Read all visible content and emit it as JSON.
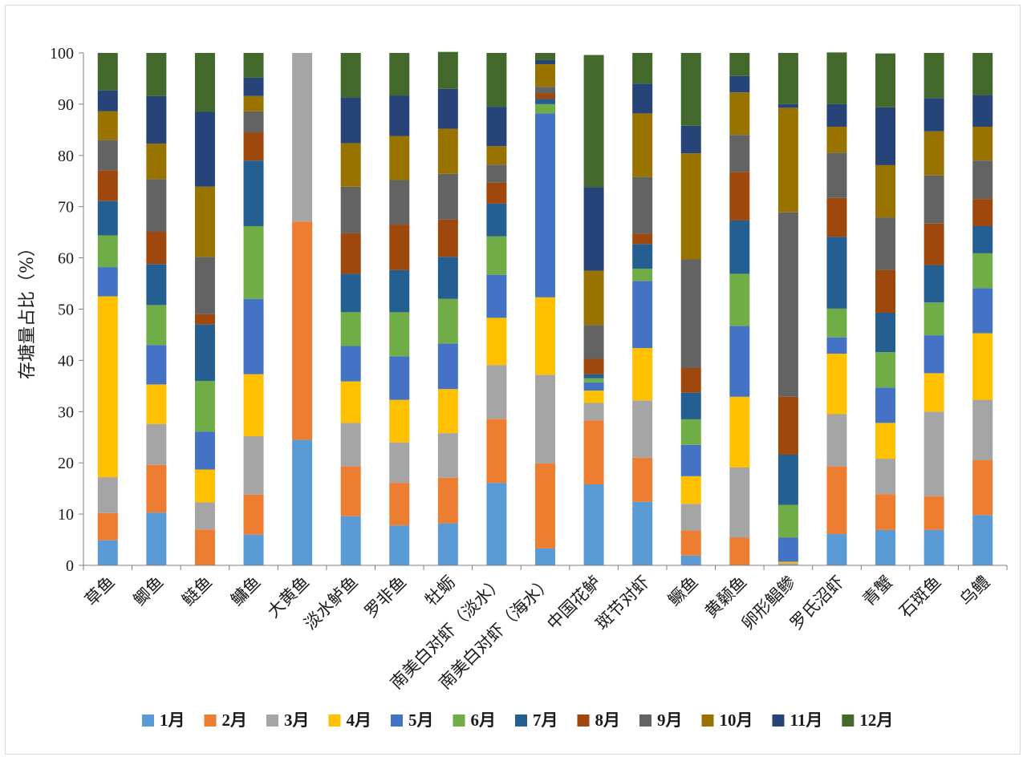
{
  "chart_data": {
    "type": "bar",
    "stacked": true,
    "title": "",
    "xlabel": "",
    "ylabel": "存塘量占比（%）",
    "ylim": [
      0,
      100
    ],
    "yticks": [
      0,
      10,
      20,
      30,
      40,
      50,
      60,
      70,
      80,
      90,
      100
    ],
    "grid": false,
    "legend_position": "bottom",
    "categories": [
      "草鱼",
      "鲫鱼",
      "鲢鱼",
      "鳙鱼",
      "大黄鱼",
      "淡水鲈鱼",
      "罗非鱼",
      "牡蛎",
      "南美白对虾（淡水）",
      "南美白对虾（海水）",
      "中国花鲈",
      "斑节对虾",
      "鳜鱼",
      "黄颡鱼",
      "卵形鲳鲹",
      "罗氏沼虾",
      "青蟹",
      "石斑鱼",
      "乌鳢"
    ],
    "series": [
      {
        "name": "1月",
        "color": "#5B9BD5",
        "values": [
          4.9,
          10.3,
          0,
          6,
          24.5,
          9.6,
          7.8,
          8.2,
          16.1,
          3.3,
          15.8,
          12.4,
          1.9,
          0,
          0,
          6.1,
          6.9,
          6.9,
          9.8
        ]
      },
      {
        "name": "2月",
        "color": "#ED7D31",
        "values": [
          5.3,
          9.3,
          7,
          7.8,
          42.6,
          9.7,
          8.3,
          8.9,
          12.5,
          16.6,
          12.5,
          8.6,
          4.9,
          5.4,
          0,
          13.2,
          7,
          6.6,
          10.7
        ]
      },
      {
        "name": "3月",
        "color": "#A5A5A5",
        "values": [
          7,
          8,
          5.3,
          11.4,
          32.9,
          8.5,
          7.9,
          8.7,
          10.5,
          17.3,
          3.4,
          11.2,
          5.2,
          13.7,
          0.4,
          10.2,
          6.9,
          16.5,
          11.8
        ]
      },
      {
        "name": "4月",
        "color": "#FFC000",
        "values": [
          35.3,
          7.7,
          6.4,
          12.1,
          0,
          8.1,
          8.3,
          8.6,
          9.2,
          15.1,
          2.4,
          10.2,
          5.4,
          13.8,
          0.3,
          11.8,
          7,
          7.5,
          13
        ]
      },
      {
        "name": "5月",
        "color": "#4472C4",
        "values": [
          5.7,
          7.7,
          7.4,
          14.7,
          0,
          6.9,
          8.5,
          8.9,
          8.4,
          35.9,
          1.6,
          13.1,
          6.1,
          13.8,
          4.7,
          3.2,
          6.9,
          7.4,
          8.8
        ]
      },
      {
        "name": "6月",
        "color": "#70AD47",
        "values": [
          6.2,
          7.8,
          9.9,
          14.2,
          0,
          6.6,
          8.6,
          8.7,
          7.5,
          1.8,
          0.8,
          2.4,
          5,
          10.2,
          6.4,
          5.6,
          6.9,
          6.4,
          6.8
        ]
      },
      {
        "name": "7月",
        "color": "#255E91",
        "values": [
          6.7,
          8,
          11,
          12.8,
          0,
          7.5,
          8.2,
          8.2,
          6.4,
          1,
          0.8,
          4.8,
          5.2,
          10.4,
          9.8,
          14,
          7.7,
          7.3,
          5.3
        ]
      },
      {
        "name": "8月",
        "color": "#9E480E",
        "values": [
          6,
          6.3,
          2,
          5.5,
          0,
          7.9,
          8.9,
          7.3,
          4.1,
          1.1,
          3,
          2,
          4.8,
          9.5,
          11.3,
          7.6,
          8.3,
          8.1,
          5.3
        ]
      },
      {
        "name": "9月",
        "color": "#636363",
        "values": [
          5.9,
          10.3,
          11.2,
          4.1,
          0,
          9.1,
          8.7,
          8.9,
          3.5,
          1.3,
          6.6,
          11.1,
          21.2,
          7.2,
          36,
          8.8,
          10.3,
          9.4,
          7.5
        ]
      },
      {
        "name": "10月",
        "color": "#997300",
        "values": [
          5.6,
          6.9,
          13.7,
          3,
          0,
          8.5,
          8.6,
          8.8,
          3.6,
          4.4,
          10.6,
          12.4,
          20.7,
          8.3,
          20.4,
          5.1,
          10.2,
          8.6,
          6.6
        ]
      },
      {
        "name": "11月",
        "color": "#264478",
        "values": [
          4.1,
          9.3,
          14.6,
          3.6,
          0,
          8.9,
          7.9,
          7.8,
          7.7,
          0.8,
          16.3,
          5.8,
          5.4,
          3.2,
          0.7,
          4.4,
          11.3,
          6.5,
          6.2
        ]
      },
      {
        "name": "12月",
        "color": "#43682B",
        "values": [
          7.3,
          8.4,
          11.5,
          4.8,
          0,
          8.7,
          8.3,
          7.2,
          10.5,
          1.4,
          25.8,
          6,
          14.2,
          4.5,
          10,
          10.1,
          10.5,
          8.8,
          8.2
        ]
      }
    ]
  }
}
